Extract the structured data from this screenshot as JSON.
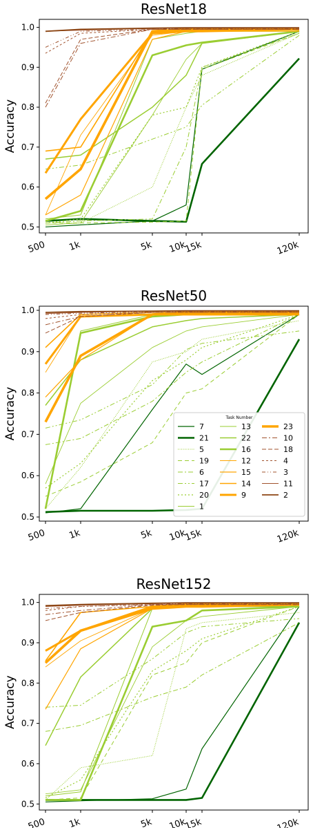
{
  "chart_data": [
    {
      "type": "line",
      "title": "ResNet18",
      "ylabel": "Accuracy",
      "xlabel": "",
      "x": [
        "500",
        "1k",
        "5k",
        "10k",
        "15k",
        "120k"
      ],
      "yticks": [
        "0.5",
        "0.6",
        "0.7",
        "0.8",
        "0.9",
        "1.0"
      ],
      "ylim": [
        0.485,
        1.02
      ],
      "legend": false,
      "series": [
        {
          "name": "7",
          "values": [
            0.5,
            0.505,
            0.515,
            0.555,
            0.895,
            0.99
          ]
        },
        {
          "name": "21",
          "values": [
            0.515,
            0.52,
            0.515,
            0.513,
            0.658,
            0.922
          ]
        },
        {
          "name": "5",
          "values": [
            0.51,
            0.51,
            0.6,
            0.8,
            0.88,
            0.985
          ]
        },
        {
          "name": "19",
          "values": [
            0.51,
            0.51,
            0.512,
            0.515,
            0.895,
            0.985
          ]
        },
        {
          "name": "6",
          "values": [
            0.51,
            0.515,
            0.52,
            0.7,
            0.9,
            0.985
          ]
        },
        {
          "name": "17",
          "values": [
            0.645,
            0.655,
            0.72,
            0.75,
            0.805,
            0.98
          ]
        },
        {
          "name": "20",
          "values": [
            0.51,
            0.52,
            0.78,
            0.8,
            0.9,
            0.99
          ]
        },
        {
          "name": "1",
          "values": [
            0.52,
            0.53,
            0.97,
            0.985,
            0.99,
            0.99
          ]
        },
        {
          "name": "13",
          "values": [
            0.505,
            0.51,
            0.78,
            0.92,
            0.96,
            0.99
          ]
        },
        {
          "name": "22",
          "values": [
            0.67,
            0.68,
            0.8,
            0.88,
            0.96,
            0.99
          ]
        },
        {
          "name": "16",
          "values": [
            0.515,
            0.54,
            0.93,
            0.955,
            0.962,
            0.99
          ]
        },
        {
          "name": "12",
          "values": [
            0.53,
            0.73,
            0.98,
            0.99,
            0.99,
            0.99
          ]
        },
        {
          "name": "15",
          "values": [
            0.53,
            0.58,
            0.97,
            0.99,
            0.99,
            0.995
          ]
        },
        {
          "name": "14",
          "values": [
            0.69,
            0.7,
            0.99,
            0.995,
            0.995,
            0.995
          ]
        },
        {
          "name": "9",
          "values": [
            0.635,
            0.77,
            0.985,
            0.99,
            0.99,
            0.995
          ]
        },
        {
          "name": "23",
          "values": [
            0.57,
            0.645,
            0.99,
            0.995,
            0.995,
            0.995
          ]
        },
        {
          "name": "10",
          "values": [
            0.8,
            0.96,
            0.995,
            0.995,
            0.995,
            0.995
          ]
        },
        {
          "name": "18",
          "values": [
            0.81,
            0.97,
            0.995,
            0.995,
            0.995,
            0.995
          ]
        },
        {
          "name": "4",
          "values": [
            0.935,
            0.985,
            0.995,
            0.995,
            0.995,
            0.995
          ]
        },
        {
          "name": "3",
          "values": [
            0.95,
            0.99,
            0.995,
            0.997,
            0.997,
            0.997
          ]
        },
        {
          "name": "11",
          "values": [
            0.99,
            0.993,
            0.997,
            0.998,
            0.998,
            0.998
          ]
        },
        {
          "name": "2",
          "values": [
            0.99,
            0.995,
            0.998,
            0.999,
            0.999,
            0.999
          ]
        }
      ]
    },
    {
      "type": "line",
      "title": "ResNet50",
      "ylabel": "Accuracy",
      "xlabel": "",
      "x": [
        "500",
        "1k",
        "5k",
        "10k",
        "15k",
        "120k"
      ],
      "yticks": [
        "0.5",
        "0.6",
        "0.7",
        "0.8",
        "0.9",
        "1.0"
      ],
      "ylim": [
        0.49,
        1.01
      ],
      "legend": true,
      "legend_title": "Task Number",
      "legend_placement": "center-right",
      "series": [
        {
          "name": "7",
          "values": [
            0.51,
            0.52,
            0.76,
            0.87,
            0.845,
            0.99
          ]
        },
        {
          "name": "21",
          "values": [
            0.512,
            0.515,
            0.515,
            0.517,
            0.52,
            0.93
          ]
        },
        {
          "name": "5",
          "values": [
            0.52,
            0.62,
            0.875,
            0.9,
            0.93,
            0.975
          ]
        },
        {
          "name": "19",
          "values": [
            0.55,
            0.585,
            0.68,
            0.8,
            0.81,
            0.99
          ]
        },
        {
          "name": "6",
          "values": [
            0.675,
            0.69,
            0.78,
            0.85,
            0.875,
            0.99
          ]
        },
        {
          "name": "17",
          "values": [
            0.715,
            0.735,
            0.82,
            0.905,
            0.92,
            0.95
          ]
        },
        {
          "name": "20",
          "values": [
            0.57,
            0.63,
            0.83,
            0.88,
            0.91,
            0.99
          ]
        },
        {
          "name": "1",
          "values": [
            0.52,
            0.95,
            0.99,
            0.99,
            0.99,
            0.99
          ]
        },
        {
          "name": "13",
          "values": [
            0.58,
            0.775,
            0.91,
            0.95,
            0.96,
            0.99
          ]
        },
        {
          "name": "22",
          "values": [
            0.77,
            0.88,
            0.96,
            0.975,
            0.98,
            0.99
          ]
        },
        {
          "name": "16",
          "values": [
            0.52,
            0.945,
            0.985,
            0.99,
            0.99,
            0.99
          ]
        },
        {
          "name": "12",
          "values": [
            0.85,
            0.985,
            0.99,
            0.995,
            0.995,
            0.995
          ]
        },
        {
          "name": "15",
          "values": [
            0.79,
            0.88,
            0.99,
            0.99,
            0.99,
            0.99
          ]
        },
        {
          "name": "14",
          "values": [
            0.91,
            0.99,
            0.995,
            0.995,
            0.995,
            0.995
          ]
        },
        {
          "name": "9",
          "values": [
            0.87,
            0.985,
            0.99,
            0.99,
            0.99,
            0.99
          ]
        },
        {
          "name": "23",
          "values": [
            0.73,
            0.89,
            0.99,
            0.995,
            0.995,
            0.995
          ]
        },
        {
          "name": "10",
          "values": [
            0.965,
            0.985,
            0.995,
            0.995,
            0.995,
            0.995
          ]
        },
        {
          "name": "18",
          "values": [
            0.945,
            0.985,
            0.995,
            0.995,
            0.995,
            0.995
          ]
        },
        {
          "name": "4",
          "values": [
            0.98,
            0.99,
            0.995,
            0.995,
            0.995,
            0.995
          ]
        },
        {
          "name": "3",
          "values": [
            0.99,
            0.993,
            0.997,
            0.997,
            0.997,
            0.997
          ]
        },
        {
          "name": "11",
          "values": [
            0.992,
            0.995,
            0.998,
            0.998,
            0.998,
            0.998
          ]
        },
        {
          "name": "2",
          "values": [
            0.995,
            0.997,
            0.998,
            0.999,
            0.999,
            0.999
          ]
        }
      ]
    },
    {
      "type": "line",
      "title": "ResNet152",
      "ylabel": "Accuracy",
      "xlabel": "",
      "x": [
        "500",
        "1k",
        "5k",
        "10k",
        "15k",
        "120k"
      ],
      "yticks": [
        "0.5",
        "0.6",
        "0.7",
        "0.8",
        "0.9",
        "1.0"
      ],
      "ylim": [
        0.485,
        1.02
      ],
      "legend": false,
      "series": [
        {
          "name": "7",
          "values": [
            0.505,
            0.508,
            0.513,
            0.537,
            0.637,
            0.99
          ]
        },
        {
          "name": "21",
          "values": [
            0.51,
            0.51,
            0.51,
            0.51,
            0.515,
            0.95
          ]
        },
        {
          "name": "5",
          "values": [
            0.51,
            0.59,
            0.62,
            0.935,
            0.95,
            0.975
          ]
        },
        {
          "name": "19",
          "values": [
            0.51,
            0.515,
            0.82,
            0.85,
            0.9,
            0.99
          ]
        },
        {
          "name": "6",
          "values": [
            0.68,
            0.695,
            0.765,
            0.79,
            0.82,
            0.95
          ]
        },
        {
          "name": "17",
          "values": [
            0.74,
            0.745,
            0.86,
            0.925,
            0.94,
            0.96
          ]
        },
        {
          "name": "20",
          "values": [
            0.515,
            0.56,
            0.83,
            0.88,
            0.91,
            0.99
          ]
        },
        {
          "name": "1",
          "values": [
            0.52,
            0.53,
            0.985,
            0.99,
            0.99,
            0.99
          ]
        },
        {
          "name": "13",
          "values": [
            0.525,
            0.535,
            0.89,
            0.955,
            0.965,
            0.99
          ]
        },
        {
          "name": "22",
          "values": [
            0.645,
            0.815,
            0.985,
            0.99,
            0.99,
            0.99
          ]
        },
        {
          "name": "16",
          "values": [
            0.51,
            0.51,
            0.94,
            0.955,
            0.98,
            0.99
          ]
        },
        {
          "name": "12",
          "values": [
            0.84,
            0.905,
            0.985,
            0.99,
            0.99,
            0.995
          ]
        },
        {
          "name": "15",
          "values": [
            0.735,
            0.885,
            0.985,
            0.99,
            0.99,
            0.995
          ]
        },
        {
          "name": "14",
          "values": [
            0.855,
            0.975,
            0.99,
            0.995,
            0.995,
            0.995
          ]
        },
        {
          "name": "9",
          "values": [
            0.88,
            0.93,
            0.99,
            0.995,
            0.995,
            0.995
          ]
        },
        {
          "name": "23",
          "values": [
            0.85,
            0.93,
            0.985,
            0.99,
            0.99,
            0.995
          ]
        },
        {
          "name": "10",
          "values": [
            0.97,
            0.98,
            0.995,
            0.995,
            0.995,
            0.995
          ]
        },
        {
          "name": "18",
          "values": [
            0.955,
            0.975,
            0.993,
            0.995,
            0.995,
            0.995
          ]
        },
        {
          "name": "4",
          "values": [
            0.98,
            0.99,
            0.995,
            0.995,
            0.995,
            0.995
          ]
        },
        {
          "name": "3",
          "values": [
            0.985,
            0.99,
            0.995,
            0.997,
            0.997,
            0.997
          ]
        },
        {
          "name": "11",
          "values": [
            0.99,
            0.993,
            0.997,
            0.998,
            0.998,
            0.998
          ]
        },
        {
          "name": "2",
          "values": [
            0.992,
            0.995,
            0.998,
            0.999,
            0.999,
            0.999
          ]
        }
      ]
    }
  ],
  "legend_columns": [
    [
      "7",
      "21",
      "5",
      "19",
      "6",
      "17",
      "20",
      "1"
    ],
    [
      "13",
      "22",
      "16",
      "12",
      "15",
      "14",
      "9"
    ],
    [
      "23",
      "10",
      "18",
      "4",
      "3",
      "11",
      "2"
    ]
  ],
  "styles": {
    "7": {
      "color": "#006400",
      "width": 1.2,
      "dash": ""
    },
    "21": {
      "color": "#006400",
      "width": 2.6,
      "dash": ""
    },
    "5": {
      "color": "#9ACD32",
      "width": 1.0,
      "dash": "1,1.5"
    },
    "19": {
      "color": "#9ACD32",
      "width": 1.0,
      "dash": "6,4"
    },
    "6": {
      "color": "#9ACD32",
      "width": 1.0,
      "dash": "7,3,2,3"
    },
    "17": {
      "color": "#9ACD32",
      "width": 1.0,
      "dash": "7,3,2,3,2,3"
    },
    "20": {
      "color": "#9ACD32",
      "width": 1.2,
      "dash": "2,3"
    },
    "1": {
      "color": "#9ACD32",
      "width": 1.0,
      "dash": ""
    },
    "13": {
      "color": "#9ACD32",
      "width": 0.9,
      "dash": ""
    },
    "22": {
      "color": "#9ACD32",
      "width": 1.5,
      "dash": ""
    },
    "16": {
      "color": "#9ACD32",
      "width": 2.6,
      "dash": ""
    },
    "12": {
      "color": "#FFA500",
      "width": 0.9,
      "dash": ""
    },
    "15": {
      "color": "#FFA500",
      "width": 1.2,
      "dash": ""
    },
    "14": {
      "color": "#FFA500",
      "width": 1.6,
      "dash": ""
    },
    "9": {
      "color": "#FFA500",
      "width": 3.0,
      "dash": ""
    },
    "23": {
      "color": "#FFA500",
      "width": 3.6,
      "dash": ""
    },
    "10": {
      "color": "#A0522D",
      "width": 1.0,
      "dash": "7,3,2,3"
    },
    "18": {
      "color": "#A0522D",
      "width": 1.0,
      "dash": "6,3"
    },
    "4": {
      "color": "#A0522D",
      "width": 1.0,
      "dash": "3,3"
    },
    "3": {
      "color": "#A0522D",
      "width": 1.0,
      "dash": "5,3,1,3,1,3"
    },
    "11": {
      "color": "#A0522D",
      "width": 1.0,
      "dash": ""
    },
    "2": {
      "color": "#8B4513",
      "width": 1.8,
      "dash": ""
    }
  }
}
